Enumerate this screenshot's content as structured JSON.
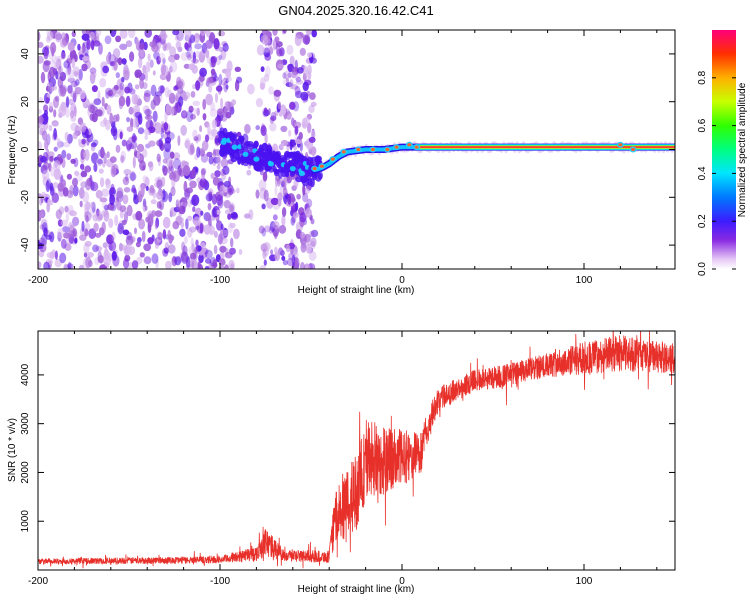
{
  "title": "GN04.2025.320.16.42.C41",
  "chart_data": [
    {
      "type": "heatmap",
      "name": "spectrogram",
      "xlabel": "Height of straight line (km)",
      "ylabel": "Frequency (Hz)",
      "xlim": [
        -200,
        150
      ],
      "ylim": [
        -50,
        50
      ],
      "xticks": [
        -200,
        -100,
        0,
        100
      ],
      "yticks": [
        -40,
        -20,
        0,
        20,
        40
      ],
      "colorbar": {
        "label": "Normalized spectral amplitude",
        "range": [
          0,
          1
        ],
        "ticks": [
          "0.0",
          "0.2",
          "0.4",
          "0.6",
          "0.8"
        ]
      },
      "ridge": [
        {
          "x": -100,
          "y": 3
        },
        {
          "x": -90,
          "y": 0
        },
        {
          "x": -80,
          "y": -3
        },
        {
          "x": -70,
          "y": -5
        },
        {
          "x": -60,
          "y": -7
        },
        {
          "x": -50,
          "y": -9
        },
        {
          "x": -45,
          "y": -8
        },
        {
          "x": -40,
          "y": -6
        },
        {
          "x": -35,
          "y": -3
        },
        {
          "x": -30,
          "y": -1
        },
        {
          "x": -20,
          "y": 0
        },
        {
          "x": -10,
          "y": 0
        },
        {
          "x": 0,
          "y": 1
        },
        {
          "x": 10,
          "y": 1
        },
        {
          "x": 50,
          "y": 1
        },
        {
          "x": 100,
          "y": 1
        },
        {
          "x": 150,
          "y": 1
        }
      ]
    },
    {
      "type": "line",
      "name": "snr",
      "xlabel": "Height of straight line (km)",
      "ylabel": "SNR (10 * v/v)",
      "xlim": [
        -200,
        150
      ],
      "ylim": [
        0,
        4900
      ],
      "xticks": [
        -200,
        -100,
        0,
        100
      ],
      "yticks": [
        1000,
        2000,
        3000,
        4000
      ],
      "color": "#e8302a",
      "envelope": [
        {
          "x": -200,
          "base": 150,
          "spread": 120
        },
        {
          "x": -100,
          "base": 180,
          "spread": 150
        },
        {
          "x": -80,
          "base": 280,
          "spread": 300
        },
        {
          "x": -75,
          "base": 450,
          "spread": 600
        },
        {
          "x": -65,
          "base": 250,
          "spread": 250
        },
        {
          "x": -40,
          "base": 220,
          "spread": 250
        },
        {
          "x": -37,
          "base": 800,
          "spread": 1100
        },
        {
          "x": -25,
          "base": 1300,
          "spread": 1600
        },
        {
          "x": -20,
          "base": 1900,
          "spread": 1800
        },
        {
          "x": -5,
          "base": 2000,
          "spread": 1300
        },
        {
          "x": 10,
          "base": 2200,
          "spread": 900
        },
        {
          "x": 17,
          "base": 3100,
          "spread": 600
        },
        {
          "x": 20,
          "base": 3400,
          "spread": 500
        },
        {
          "x": 40,
          "base": 3800,
          "spread": 450
        },
        {
          "x": 60,
          "base": 3900,
          "spread": 500
        },
        {
          "x": 80,
          "base": 4100,
          "spread": 500
        },
        {
          "x": 100,
          "base": 4200,
          "spread": 700
        },
        {
          "x": 120,
          "base": 4300,
          "spread": 750
        },
        {
          "x": 150,
          "base": 4200,
          "spread": 600
        }
      ]
    }
  ]
}
